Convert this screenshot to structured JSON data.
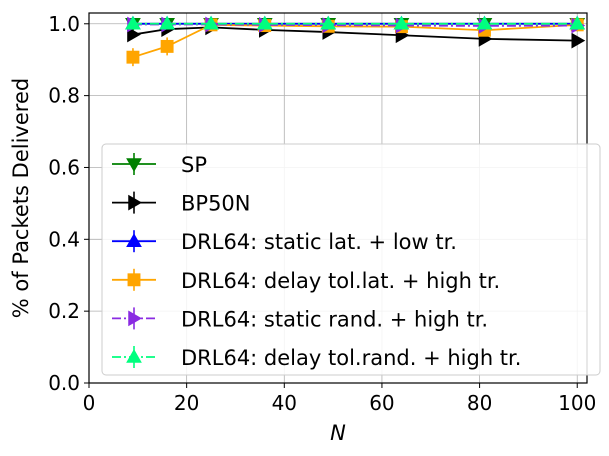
{
  "chart_data": {
    "type": "line",
    "xlabel": "N",
    "ylabel": "% of Packets Delivered",
    "xlim": [
      0,
      102
    ],
    "ylim": [
      0,
      1.03
    ],
    "xticks": [
      0,
      20,
      40,
      60,
      80,
      100
    ],
    "yticks": [
      0.0,
      0.2,
      0.4,
      0.6,
      0.8,
      1.0
    ],
    "xtick_labels": [
      "0",
      "20",
      "40",
      "60",
      "80",
      "100"
    ],
    "ytick_labels": [
      "0.0",
      "0.2",
      "0.4",
      "0.6",
      "0.8",
      "1.0"
    ],
    "grid": true,
    "legend_position": "lower-right",
    "series": [
      {
        "name": "SP",
        "color": "#008000",
        "marker": "triangle-down",
        "dashed": false,
        "x": [
          9,
          16,
          25,
          36,
          49,
          64,
          81,
          100
        ],
        "y": [
          1.0,
          1.0,
          1.0,
          1.0,
          1.0,
          1.0,
          1.0,
          1.0
        ],
        "err": [
          0,
          0,
          0,
          0,
          0,
          0,
          0,
          0
        ]
      },
      {
        "name": "BP50N",
        "color": "#000000",
        "marker": "triangle-right",
        "dashed": false,
        "x": [
          9,
          16,
          25,
          36,
          49,
          64,
          81,
          100
        ],
        "y": [
          0.97,
          0.985,
          0.99,
          0.983,
          0.977,
          0.968,
          0.958,
          0.953
        ],
        "err": [
          0,
          0,
          0,
          0,
          0,
          0,
          0,
          0
        ]
      },
      {
        "name": "DRL64: static lat. + low tr.",
        "color": "#0000ff",
        "marker": "triangle-up",
        "dashed": false,
        "x": [
          9,
          16,
          25,
          36,
          49,
          64,
          81,
          100
        ],
        "y": [
          1.0,
          1.0,
          1.0,
          1.0,
          1.0,
          1.0,
          1.0,
          1.0
        ],
        "err": [
          0,
          0,
          0,
          0,
          0,
          0,
          0,
          0
        ]
      },
      {
        "name": "DRL64: delay tol.lat. + high tr.",
        "color": "#ffa500",
        "marker": "square",
        "dashed": false,
        "x": [
          9,
          16,
          25,
          36,
          49,
          64,
          81,
          100
        ],
        "y": [
          0.907,
          0.937,
          0.997,
          0.995,
          0.993,
          0.992,
          0.982,
          0.997
        ],
        "err": [
          0.025,
          0.025,
          0.005,
          0.004,
          0.004,
          0.004,
          0.006,
          0.004
        ]
      },
      {
        "name": "DRL64: static rand. + high tr.",
        "color": "#8a2be2",
        "marker": "triangle-right",
        "dashed": true,
        "x": [
          9,
          16,
          25,
          36,
          49,
          64,
          81,
          100
        ],
        "y": [
          0.998,
          0.998,
          0.998,
          0.997,
          0.996,
          0.995,
          0.994,
          0.995
        ],
        "err": [
          0,
          0,
          0,
          0,
          0,
          0,
          0,
          0
        ]
      },
      {
        "name": "DRL64: delay tol.rand. + high tr.",
        "color": "#00ff7f",
        "marker": "triangle-up",
        "dashed": true,
        "x": [
          9,
          16,
          25,
          36,
          49,
          64,
          81,
          100
        ],
        "y": [
          1.0,
          1.0,
          1.0,
          1.0,
          1.0,
          1.0,
          1.0,
          1.0
        ],
        "err": [
          0,
          0,
          0,
          0,
          0,
          0,
          0,
          0
        ]
      }
    ]
  }
}
